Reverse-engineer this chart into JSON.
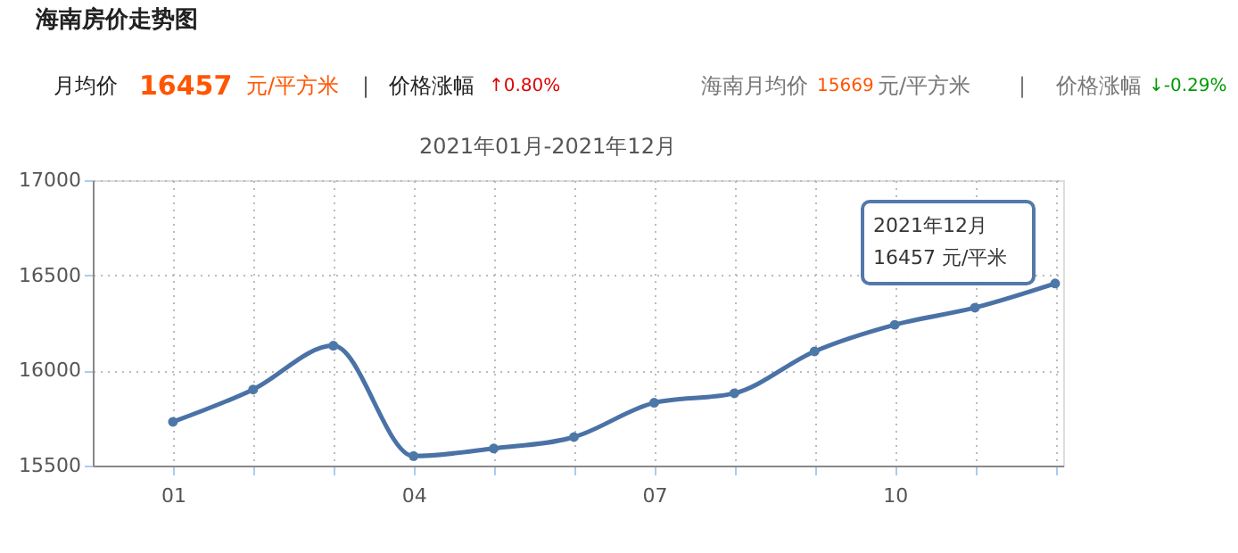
{
  "chart_data": {
    "type": "line",
    "title": "海南房价走势图",
    "subtitle": "2021年01月-2021年12月",
    "categories": [
      "01",
      null,
      null,
      "04",
      null,
      null,
      "07",
      null,
      null,
      "10",
      null,
      null
    ],
    "series": [
      {
        "color": "#4a72a6",
        "values": [
          15730,
          15900,
          16130,
          15550,
          15590,
          15650,
          15830,
          15880,
          16100,
          16240,
          16330,
          16457
        ]
      }
    ],
    "ylim": [
      15500,
      17000
    ],
    "yticks": [
      15500,
      16000,
      16500,
      17000
    ],
    "grid": true,
    "marker": "circle",
    "line_style": "solid",
    "annotations": [
      "月均价",
      "16457",
      "元/平方米",
      "|",
      "价格涨幅",
      "↑0.80%",
      "海南月均价",
      "15669",
      "元/平方米",
      "|",
      "价格涨幅",
      "↓-0.29%",
      "2021年12月\n16457 元/平米"
    ]
  }
}
